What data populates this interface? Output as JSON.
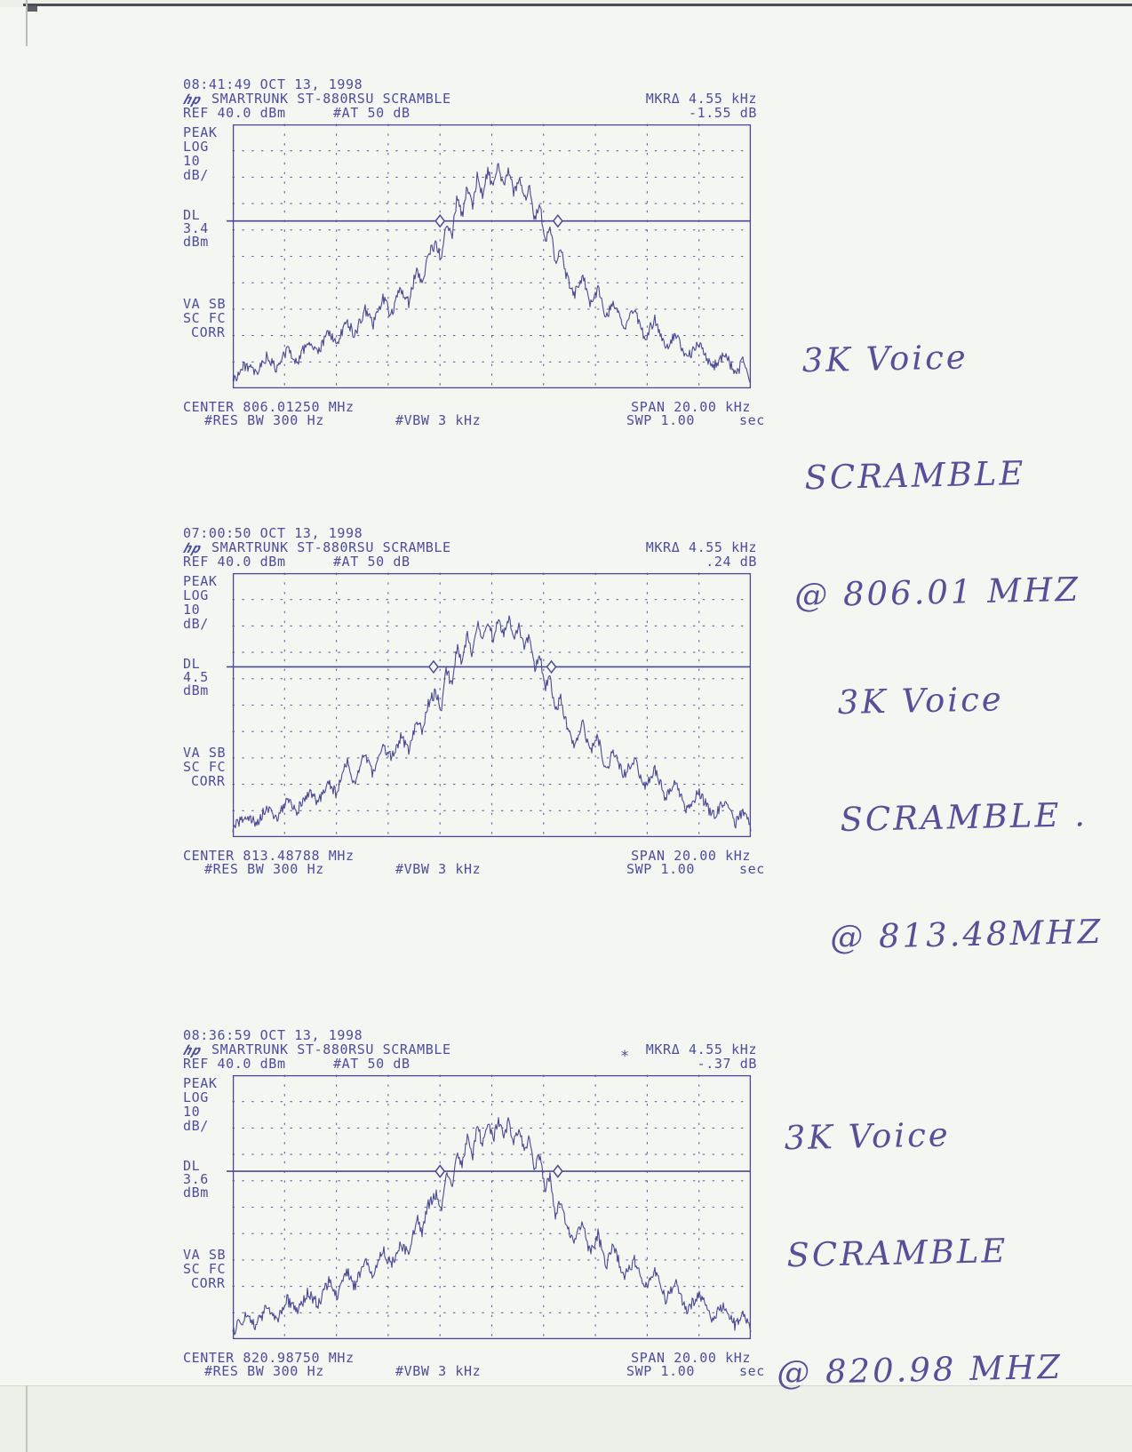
{
  "page": {
    "paper_color": "#f4f6f1",
    "ink_color": "#4a4a94",
    "handwriting_color": "#575098"
  },
  "charts": [
    {
      "timestamp": "08:41:49 OCT 13, 1998",
      "logo": "hp",
      "title": "SMARTRUNK ST-880RSU SCRAMBLE",
      "ref": "REF 40.0 dBm",
      "at": "#AT 50 dB",
      "mkr_label": "MKRΔ 4.55 kHz",
      "mkr_value": "-1.55 dB",
      "left_labels": {
        "peak": "PEAK",
        "log": "LOG",
        "scale": "10",
        "unit": "dB/",
        "dl": "DL",
        "dl_value": "3.4",
        "dl_unit": "dBm",
        "va": "VA SB",
        "sc": "SC FC",
        "corr": "CORR"
      },
      "center": "CENTER 806.01250 MHz",
      "span": "SPAN 20.00 kHz",
      "res_bw": "#RES BW 300 Hz",
      "vbw": "#VBW 3 kHz",
      "swp": "SWP 1.00",
      "swp_unit": "sec",
      "handwriting": [
        "3K Voice",
        "SCRAMBLE",
        "@ 806.01 MHZ"
      ]
    },
    {
      "timestamp": "07:00:50 OCT 13, 1998",
      "logo": "hp",
      "title": "SMARTRUNK ST-880RSU SCRAMBLE",
      "ref": "REF 40.0 dBm",
      "at": "#AT 50 dB",
      "mkr_label": "MKRΔ 4.55 kHz",
      "mkr_value": ".24 dB",
      "left_labels": {
        "peak": "PEAK",
        "log": "LOG",
        "scale": "10",
        "unit": "dB/",
        "dl": "DL",
        "dl_value": "4.5",
        "dl_unit": "dBm",
        "va": "VA SB",
        "sc": "SC FC",
        "corr": "CORR"
      },
      "center": "CENTER 813.48788 MHz",
      "span": "SPAN 20.00 kHz",
      "res_bw": "#RES BW 300 Hz",
      "vbw": "#VBW 3 kHz",
      "swp": "SWP 1.00",
      "swp_unit": "sec",
      "handwriting": [
        "3K Voice",
        "SCRAMBLE .",
        "@ 813.48MHZ"
      ]
    },
    {
      "timestamp": "08:36:59 OCT 13, 1998",
      "logo": "hp",
      "title": "SMARTRUNK ST-880RSU SCRAMBLE",
      "ref": "REF 40.0 dBm",
      "at": "#AT 50 dB",
      "mkr_label": "MKRΔ 4.55 kHz",
      "mkr_value": "-.37 dB",
      "annunciator": "*",
      "left_labels": {
        "peak": "PEAK",
        "log": "LOG",
        "scale": "10",
        "unit": "dB/",
        "dl": "DL",
        "dl_value": "3.6",
        "dl_unit": "dBm",
        "va": "VA SB",
        "sc": "SC FC",
        "corr": "CORR"
      },
      "center": "CENTER 820.98750 MHz",
      "span": "SPAN 20.00 kHz",
      "res_bw": "#RES BW 300 Hz",
      "vbw": "#VBW 3 kHz",
      "swp": "SWP 1.00",
      "swp_unit": "sec",
      "handwriting": [
        "3K Voice",
        "SCRAMBLE",
        "@ 820.98 MHZ"
      ]
    }
  ],
  "chart_data": [
    {
      "type": "line",
      "title": "SMARTRUNK ST-880RSU SCRAMBLE",
      "timestamp": "08:41:49 OCT 13, 1998",
      "center_mhz": 806.0125,
      "span_khz": 20,
      "ref_dbm": 40,
      "scale_db_per_div": 10,
      "atten_db": 50,
      "display_line_dbm": 3.4,
      "marker_delta_khz": 4.55,
      "marker_delta_db": -1.55,
      "marker_offsets_khz": [
        -2.0,
        2.55
      ],
      "res_bw_hz": 300,
      "vbw_khz": 3,
      "sweep_s": 1.0,
      "grid": "10x10 dotted graticule",
      "x_unit": "kHz offset from center",
      "y_unit": "dBm",
      "ylim": [
        -60,
        40
      ],
      "seed": 3,
      "envelope": [
        [
          -10,
          -57
        ],
        [
          -9.5,
          -51
        ],
        [
          -9.1,
          -55
        ],
        [
          -8.7,
          -48
        ],
        [
          -8.3,
          -53
        ],
        [
          -7.9,
          -45
        ],
        [
          -7.5,
          -50
        ],
        [
          -7.1,
          -42
        ],
        [
          -6.7,
          -47
        ],
        [
          -6.3,
          -38
        ],
        [
          -6,
          -44
        ],
        [
          -5.6,
          -34
        ],
        [
          -5.3,
          -40
        ],
        [
          -4.9,
          -30
        ],
        [
          -4.6,
          -36
        ],
        [
          -4.2,
          -26
        ],
        [
          -3.9,
          -32
        ],
        [
          -3.5,
          -22
        ],
        [
          -3.2,
          -28
        ],
        [
          -2.9,
          -14
        ],
        [
          -2.7,
          -20
        ],
        [
          -2.45,
          -9
        ],
        [
          -2.15,
          -5
        ],
        [
          -1.95,
          -12
        ],
        [
          -1.75,
          4
        ],
        [
          -1.55,
          -3
        ],
        [
          -1.35,
          12
        ],
        [
          -1.15,
          5
        ],
        [
          -0.95,
          17
        ],
        [
          -0.75,
          9
        ],
        [
          -0.55,
          21
        ],
        [
          -0.35,
          13
        ],
        [
          -0.15,
          23
        ],
        [
          0.05,
          15
        ],
        [
          0.25,
          24
        ],
        [
          0.45,
          16
        ],
        [
          0.65,
          23
        ],
        [
          0.85,
          14
        ],
        [
          1.05,
          20
        ],
        [
          1.25,
          11
        ],
        [
          1.45,
          17
        ],
        [
          1.65,
          4
        ],
        [
          1.85,
          10
        ],
        [
          2.05,
          -4
        ],
        [
          2.25,
          2
        ],
        [
          2.45,
          -13
        ],
        [
          2.65,
          -7
        ],
        [
          2.9,
          -18
        ],
        [
          3.2,
          -24
        ],
        [
          3.5,
          -17
        ],
        [
          3.8,
          -28
        ],
        [
          4.1,
          -22
        ],
        [
          4.4,
          -33
        ],
        [
          4.7,
          -27
        ],
        [
          5.1,
          -37
        ],
        [
          5.5,
          -30
        ],
        [
          5.9,
          -41
        ],
        [
          6.3,
          -34
        ],
        [
          6.7,
          -45
        ],
        [
          7.1,
          -39
        ],
        [
          7.5,
          -49
        ],
        [
          8,
          -43
        ],
        [
          8.5,
          -52
        ],
        [
          9,
          -47
        ],
        [
          9.4,
          -55
        ],
        [
          9.7,
          -50
        ],
        [
          10,
          -57
        ]
      ]
    },
    {
      "type": "line",
      "title": "SMARTRUNK ST-880RSU SCRAMBLE",
      "timestamp": "07:00:50 OCT 13, 1998",
      "center_mhz": 813.48788,
      "span_khz": 20,
      "ref_dbm": 40,
      "scale_db_per_div": 10,
      "atten_db": 50,
      "display_line_dbm": 4.5,
      "marker_delta_khz": 4.55,
      "marker_delta_db": 0.24,
      "marker_offsets_khz": [
        -2.25,
        2.3
      ],
      "res_bw_hz": 300,
      "vbw_khz": 3,
      "sweep_s": 1.0,
      "grid": "10x10 dotted graticule",
      "x_unit": "kHz offset from center",
      "y_unit": "dBm",
      "ylim": [
        -60,
        40
      ],
      "seed": 7,
      "envelope": [
        [
          -10,
          -57
        ],
        [
          -9.5,
          -52
        ],
        [
          -9.1,
          -55
        ],
        [
          -8.7,
          -49
        ],
        [
          -8.3,
          -53
        ],
        [
          -7.9,
          -46
        ],
        [
          -7.5,
          -50
        ],
        [
          -7.1,
          -43
        ],
        [
          -6.7,
          -47
        ],
        [
          -6.3,
          -39
        ],
        [
          -6,
          -44
        ],
        [
          -5.6,
          -31
        ],
        [
          -5.3,
          -40
        ],
        [
          -4.9,
          -28
        ],
        [
          -4.6,
          -36
        ],
        [
          -4.2,
          -26
        ],
        [
          -3.9,
          -30
        ],
        [
          -3.5,
          -22
        ],
        [
          -3.2,
          -28
        ],
        [
          -2.9,
          -15
        ],
        [
          -2.7,
          -20
        ],
        [
          -2.45,
          -9
        ],
        [
          -2.15,
          -5
        ],
        [
          -1.95,
          -12
        ],
        [
          -1.75,
          4
        ],
        [
          -1.55,
          -3
        ],
        [
          -1.35,
          12
        ],
        [
          -1.15,
          5
        ],
        [
          -0.95,
          17
        ],
        [
          -0.75,
          9
        ],
        [
          -0.55,
          21
        ],
        [
          -0.35,
          13
        ],
        [
          -0.15,
          23
        ],
        [
          0.05,
          15
        ],
        [
          0.25,
          24
        ],
        [
          0.45,
          16
        ],
        [
          0.65,
          23
        ],
        [
          0.85,
          14
        ],
        [
          1.05,
          20
        ],
        [
          1.25,
          11
        ],
        [
          1.45,
          17
        ],
        [
          1.65,
          4
        ],
        [
          1.85,
          10
        ],
        [
          2.05,
          -4
        ],
        [
          2.25,
          2
        ],
        [
          2.45,
          -13
        ],
        [
          2.65,
          -7
        ],
        [
          2.9,
          -18
        ],
        [
          3.2,
          -26
        ],
        [
          3.5,
          -17
        ],
        [
          3.8,
          -28
        ],
        [
          4.1,
          -22
        ],
        [
          4.4,
          -35
        ],
        [
          4.7,
          -27
        ],
        [
          5.1,
          -37
        ],
        [
          5.5,
          -30
        ],
        [
          5.9,
          -41
        ],
        [
          6.3,
          -34
        ],
        [
          6.7,
          -45
        ],
        [
          7.1,
          -39
        ],
        [
          7.5,
          -49
        ],
        [
          8,
          -43
        ],
        [
          8.5,
          -52
        ],
        [
          9,
          -47
        ],
        [
          9.4,
          -55
        ],
        [
          9.7,
          -50
        ],
        [
          10,
          -57
        ]
      ]
    },
    {
      "type": "line",
      "title": "SMARTRUNK ST-880RSU SCRAMBLE",
      "timestamp": "08:36:59 OCT 13, 1998",
      "center_mhz": 820.9875,
      "span_khz": 20,
      "ref_dbm": 40,
      "scale_db_per_div": 10,
      "atten_db": 50,
      "display_line_dbm": 3.6,
      "marker_delta_khz": 4.55,
      "marker_delta_db": -0.37,
      "marker_offsets_khz": [
        -2.0,
        2.55
      ],
      "res_bw_hz": 300,
      "vbw_khz": 3,
      "sweep_s": 1.0,
      "grid": "10x10 dotted graticule",
      "x_unit": "kHz offset from center",
      "y_unit": "dBm",
      "ylim": [
        -60,
        40
      ],
      "seed": 13,
      "envelope": [
        [
          -10,
          -57
        ],
        [
          -9.5,
          -51
        ],
        [
          -9.1,
          -55
        ],
        [
          -8.7,
          -48
        ],
        [
          -8.3,
          -53
        ],
        [
          -7.9,
          -45
        ],
        [
          -7.5,
          -50
        ],
        [
          -7.1,
          -42
        ],
        [
          -6.7,
          -47
        ],
        [
          -6.3,
          -38
        ],
        [
          -6,
          -44
        ],
        [
          -5.6,
          -34
        ],
        [
          -5.3,
          -40
        ],
        [
          -4.9,
          -30
        ],
        [
          -4.6,
          -36
        ],
        [
          -4.2,
          -26
        ],
        [
          -3.9,
          -32
        ],
        [
          -3.5,
          -24
        ],
        [
          -3.2,
          -28
        ],
        [
          -2.9,
          -14
        ],
        [
          -2.7,
          -20
        ],
        [
          -2.45,
          -9
        ],
        [
          -2.15,
          -5
        ],
        [
          -1.95,
          -12
        ],
        [
          -1.75,
          4
        ],
        [
          -1.55,
          -3
        ],
        [
          -1.35,
          12
        ],
        [
          -1.15,
          5
        ],
        [
          -0.95,
          17
        ],
        [
          -0.75,
          9
        ],
        [
          -0.55,
          21
        ],
        [
          -0.35,
          13
        ],
        [
          -0.15,
          23
        ],
        [
          0.05,
          15
        ],
        [
          0.25,
          24
        ],
        [
          0.45,
          16
        ],
        [
          0.65,
          23
        ],
        [
          0.85,
          14
        ],
        [
          1.05,
          20
        ],
        [
          1.25,
          11
        ],
        [
          1.45,
          17
        ],
        [
          1.65,
          4
        ],
        [
          1.85,
          10
        ],
        [
          2.05,
          -4
        ],
        [
          2.25,
          2
        ],
        [
          2.45,
          -13
        ],
        [
          2.65,
          -7
        ],
        [
          2.9,
          -18
        ],
        [
          3.2,
          -24
        ],
        [
          3.5,
          -15
        ],
        [
          3.8,
          -28
        ],
        [
          4.1,
          -20
        ],
        [
          4.4,
          -33
        ],
        [
          4.7,
          -24
        ],
        [
          5.1,
          -37
        ],
        [
          5.5,
          -30
        ],
        [
          5.9,
          -41
        ],
        [
          6.3,
          -34
        ],
        [
          6.7,
          -45
        ],
        [
          7.1,
          -39
        ],
        [
          7.5,
          -49
        ],
        [
          8,
          -43
        ],
        [
          8.5,
          -52
        ],
        [
          9,
          -47
        ],
        [
          9.4,
          -55
        ],
        [
          9.7,
          -50
        ],
        [
          10,
          -57
        ]
      ]
    }
  ]
}
